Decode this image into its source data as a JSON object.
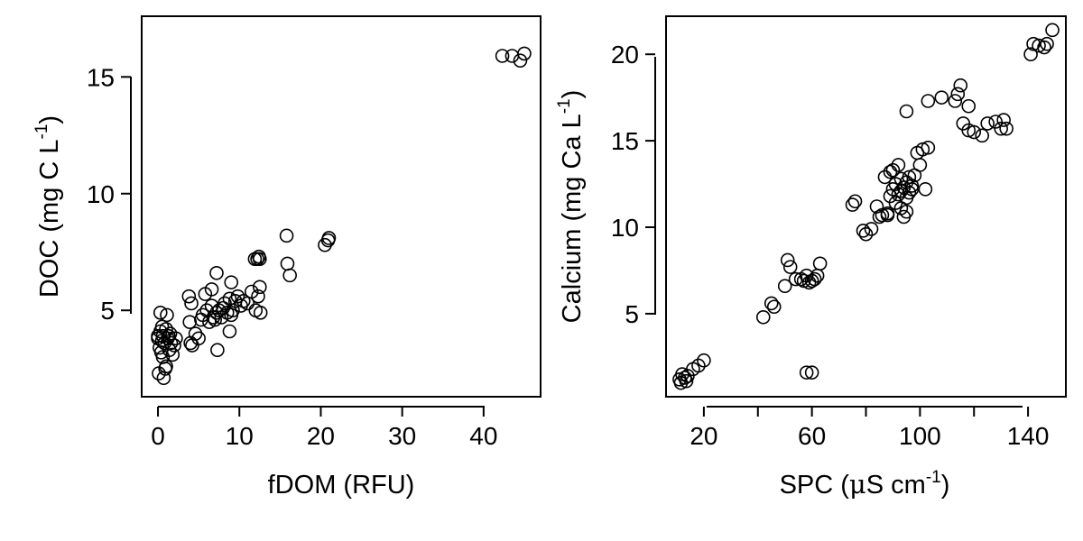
{
  "chart_data": [
    {
      "type": "scatter",
      "xlabel": "fDOM (RFU)",
      "ylabel": "DOC (mg C L⁻¹)",
      "xlabel_parts": {
        "text": "fDOM (RFU)"
      },
      "ylabel_parts": {
        "main": "DOC (mg C L",
        "sup": "-1",
        "tail": ")"
      },
      "xlim": [
        -2,
        47
      ],
      "ylim": [
        1.3,
        17.6
      ],
      "xticks": [
        0,
        10,
        20,
        30,
        40
      ],
      "yticks": [
        5,
        10,
        15
      ],
      "grid": false,
      "marker": "open-circle",
      "x": [
        0,
        0,
        0.3,
        0.5,
        0.2,
        0.8,
        0.4,
        0.6,
        0.1,
        0.7,
        1.0,
        0.9,
        1.2,
        1.5,
        0.3,
        1.1,
        0.5,
        2.0,
        1.4,
        1.8,
        1.0,
        1.3,
        1.6,
        0.6,
        2.2,
        3.9,
        4.2,
        4.6,
        4.0,
        5.0,
        5.3,
        5.5,
        6.0,
        6.3,
        6.6,
        6.8,
        7.0,
        7.2,
        7.5,
        7.8,
        8.0,
        8.2,
        8.5,
        8.8,
        9.0,
        9.2,
        9.5,
        9.8,
        10.2,
        10.5,
        11.0,
        11.5,
        12.0,
        12.3,
        12.6,
        3.8,
        4.1,
        5.8,
        6.6,
        7.2,
        7.3,
        8.8,
        9.0,
        12.2,
        12.5,
        11.9,
        12.4,
        12.5,
        15.8,
        15.9,
        16.2,
        20.5,
        20.9,
        21.0,
        42.3,
        43.5,
        44.5,
        45.0
      ],
      "y": [
        3.9,
        3.8,
        4.1,
        3.7,
        3.4,
        3.6,
        3.2,
        3.0,
        2.3,
        2.1,
        2.6,
        2.5,
        3.8,
        4.0,
        4.9,
        4.8,
        4.3,
        3.5,
        3.3,
        3.1,
        4.2,
        3.9,
        3.6,
        3.9,
        3.8,
        4.5,
        3.5,
        4.0,
        3.6,
        3.8,
        4.6,
        4.8,
        5.0,
        4.5,
        5.2,
        4.7,
        4.6,
        4.9,
        5.0,
        4.7,
        5.1,
        5.3,
        4.9,
        5.5,
        4.8,
        5.0,
        5.4,
        5.6,
        5.2,
        5.4,
        5.3,
        5.8,
        5.0,
        5.6,
        4.9,
        5.6,
        5.3,
        5.7,
        5.9,
        6.6,
        3.3,
        4.1,
        6.2,
        7.2,
        7.2,
        7.2,
        7.3,
        6.0,
        8.2,
        7.0,
        6.5,
        7.8,
        8.0,
        8.1,
        15.9,
        15.9,
        15.7,
        16.0
      ]
    },
    {
      "type": "scatter",
      "xlabel": "SPC (µS cm⁻¹)",
      "ylabel": "Calcium (mg Ca L⁻¹)",
      "xlabel_parts": {
        "main": "SPC (",
        "mu": "μ",
        "mid": "S cm",
        "sup": "-1",
        "tail": ")"
      },
      "ylabel_parts": {
        "main": "Calcium (mg Ca L",
        "sup": "-1",
        "tail": ")"
      },
      "xlim": [
        6,
        154
      ],
      "ylim": [
        0.2,
        22.2
      ],
      "xticks": [
        20,
        60,
        100,
        140
      ],
      "xticks_minor": [
        40,
        80,
        120
      ],
      "yticks": [
        5,
        10,
        15,
        20
      ],
      "grid": false,
      "marker": "open-circle",
      "x": [
        11,
        12,
        13,
        14,
        16,
        18,
        20,
        11.5,
        13.5,
        42,
        45,
        46,
        50,
        51,
        52,
        54,
        56,
        57,
        58,
        59,
        60,
        61,
        62,
        63,
        58,
        60,
        75,
        76,
        79,
        80,
        82,
        84,
        85,
        86,
        87,
        88,
        89,
        90,
        90,
        91,
        92,
        92,
        93,
        93,
        94,
        95,
        95,
        96,
        96,
        97,
        98,
        99,
        100,
        101,
        102,
        103,
        94,
        95,
        89,
        88,
        91,
        93,
        97,
        95,
        103,
        108,
        113,
        114,
        115,
        116,
        118,
        118,
        120,
        123,
        125,
        128,
        130,
        131,
        132,
        141,
        142,
        144,
        146,
        147,
        149
      ],
      "y": [
        1.2,
        1.5,
        1.3,
        1.4,
        1.8,
        2.0,
        2.3,
        1.0,
        1.1,
        4.8,
        5.6,
        5.4,
        6.6,
        8.1,
        7.7,
        7.0,
        7.0,
        6.9,
        7.2,
        6.8,
        6.9,
        7.0,
        7.2,
        7.9,
        1.6,
        1.6,
        11.3,
        11.5,
        9.8,
        9.6,
        9.9,
        11.2,
        10.6,
        10.7,
        12.9,
        10.7,
        11.8,
        12.2,
        13.3,
        12.5,
        11.9,
        13.6,
        12.8,
        12.1,
        12.3,
        11.7,
        12.6,
        12.0,
        12.9,
        12.2,
        13.0,
        14.3,
        13.6,
        14.5,
        12.2,
        14.6,
        10.6,
        10.9,
        13.2,
        10.8,
        11.4,
        11.1,
        12.4,
        16.7,
        17.3,
        17.5,
        17.3,
        17.7,
        18.2,
        16.0,
        17.0,
        15.6,
        15.5,
        15.3,
        16.0,
        16.1,
        15.7,
        16.2,
        15.7,
        20.0,
        20.6,
        20.5,
        20.4,
        20.6,
        21.4
      ]
    }
  ]
}
